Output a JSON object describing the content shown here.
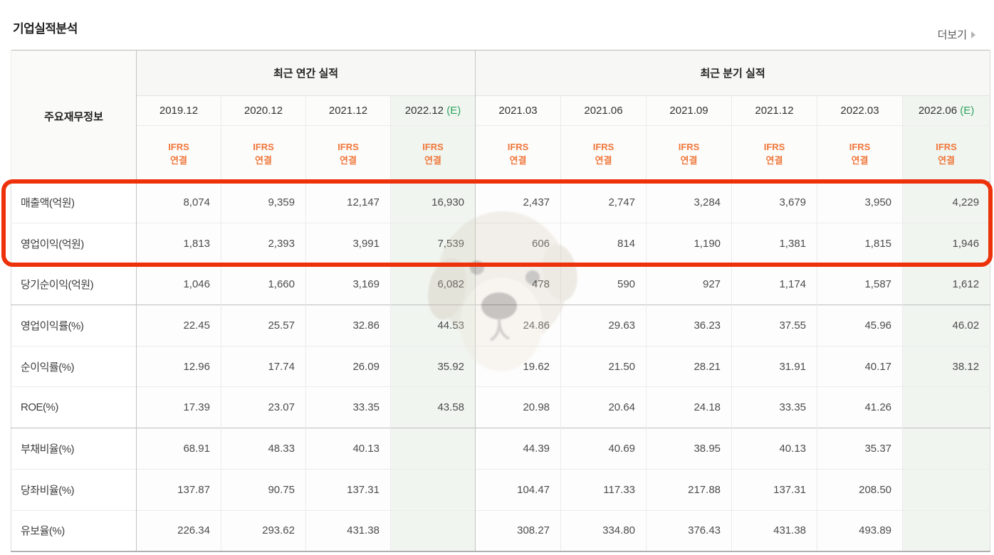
{
  "page": {
    "title": "기업실적분석",
    "more_label": "더보기"
  },
  "table": {
    "corner_header": "주요재무정보",
    "group_headers": {
      "annual": "최근 연간 실적",
      "quarterly": "최근 분기 실적"
    },
    "ifrs_label": {
      "line1": "IFRS",
      "line2": "연결"
    },
    "estimate_suffix": "(E)",
    "columns": [
      {
        "period": "2019.12",
        "estimate": false,
        "group": "annual"
      },
      {
        "period": "2020.12",
        "estimate": false,
        "group": "annual"
      },
      {
        "period": "2021.12",
        "estimate": false,
        "group": "annual"
      },
      {
        "period": "2022.12",
        "estimate": true,
        "group": "annual"
      },
      {
        "period": "2021.03",
        "estimate": false,
        "group": "quarterly"
      },
      {
        "period": "2021.06",
        "estimate": false,
        "group": "quarterly"
      },
      {
        "period": "2021.09",
        "estimate": false,
        "group": "quarterly"
      },
      {
        "period": "2021.12",
        "estimate": false,
        "group": "quarterly"
      },
      {
        "period": "2022.03",
        "estimate": false,
        "group": "quarterly"
      },
      {
        "period": "2022.06",
        "estimate": true,
        "group": "quarterly"
      }
    ],
    "rows": [
      {
        "label": "매출액(억원)",
        "values": [
          "8,074",
          "9,359",
          "12,147",
          "16,930",
          "2,437",
          "2,747",
          "3,284",
          "3,679",
          "3,950",
          "4,229"
        ]
      },
      {
        "label": "영업이익(억원)",
        "values": [
          "1,813",
          "2,393",
          "3,991",
          "7,539",
          "606",
          "814",
          "1,190",
          "1,381",
          "1,815",
          "1,946"
        ]
      },
      {
        "label": "당기순이익(억원)",
        "values": [
          "1,046",
          "1,660",
          "3,169",
          "6,082",
          "478",
          "590",
          "927",
          "1,174",
          "1,587",
          "1,612"
        ]
      },
      {
        "label": "영업이익률(%)",
        "values": [
          "22.45",
          "25.57",
          "32.86",
          "44.53",
          "24.86",
          "29.63",
          "36.23",
          "37.55",
          "45.96",
          "46.02"
        ]
      },
      {
        "label": "순이익률(%)",
        "values": [
          "12.96",
          "17.74",
          "26.09",
          "35.92",
          "19.62",
          "21.50",
          "28.21",
          "31.91",
          "40.17",
          "38.12"
        ]
      },
      {
        "label": "ROE(%)",
        "values": [
          "17.39",
          "23.07",
          "33.35",
          "43.58",
          "20.98",
          "20.64",
          "24.18",
          "33.35",
          "41.26",
          ""
        ]
      },
      {
        "label": "부채비율(%)",
        "values": [
          "68.91",
          "48.33",
          "40.13",
          "",
          "44.39",
          "40.69",
          "38.95",
          "40.13",
          "35.37",
          ""
        ]
      },
      {
        "label": "당좌비율(%)",
        "values": [
          "137.87",
          "90.75",
          "137.31",
          "",
          "104.47",
          "117.33",
          "217.88",
          "137.31",
          "208.50",
          ""
        ]
      },
      {
        "label": "유보율(%)",
        "values": [
          "226.34",
          "293.62",
          "431.38",
          "",
          "308.27",
          "334.80",
          "376.43",
          "431.38",
          "493.89",
          ""
        ]
      }
    ],
    "highlighted_row_labels": [
      "매출액(억원)",
      "영업이익(억원)"
    ]
  },
  "colors": {
    "accent_red": "#ed320b",
    "ifrs_orange": "#f0783c",
    "estimate_green": "#2ea45f",
    "estimate_column_bg": "#f0f5f0"
  }
}
